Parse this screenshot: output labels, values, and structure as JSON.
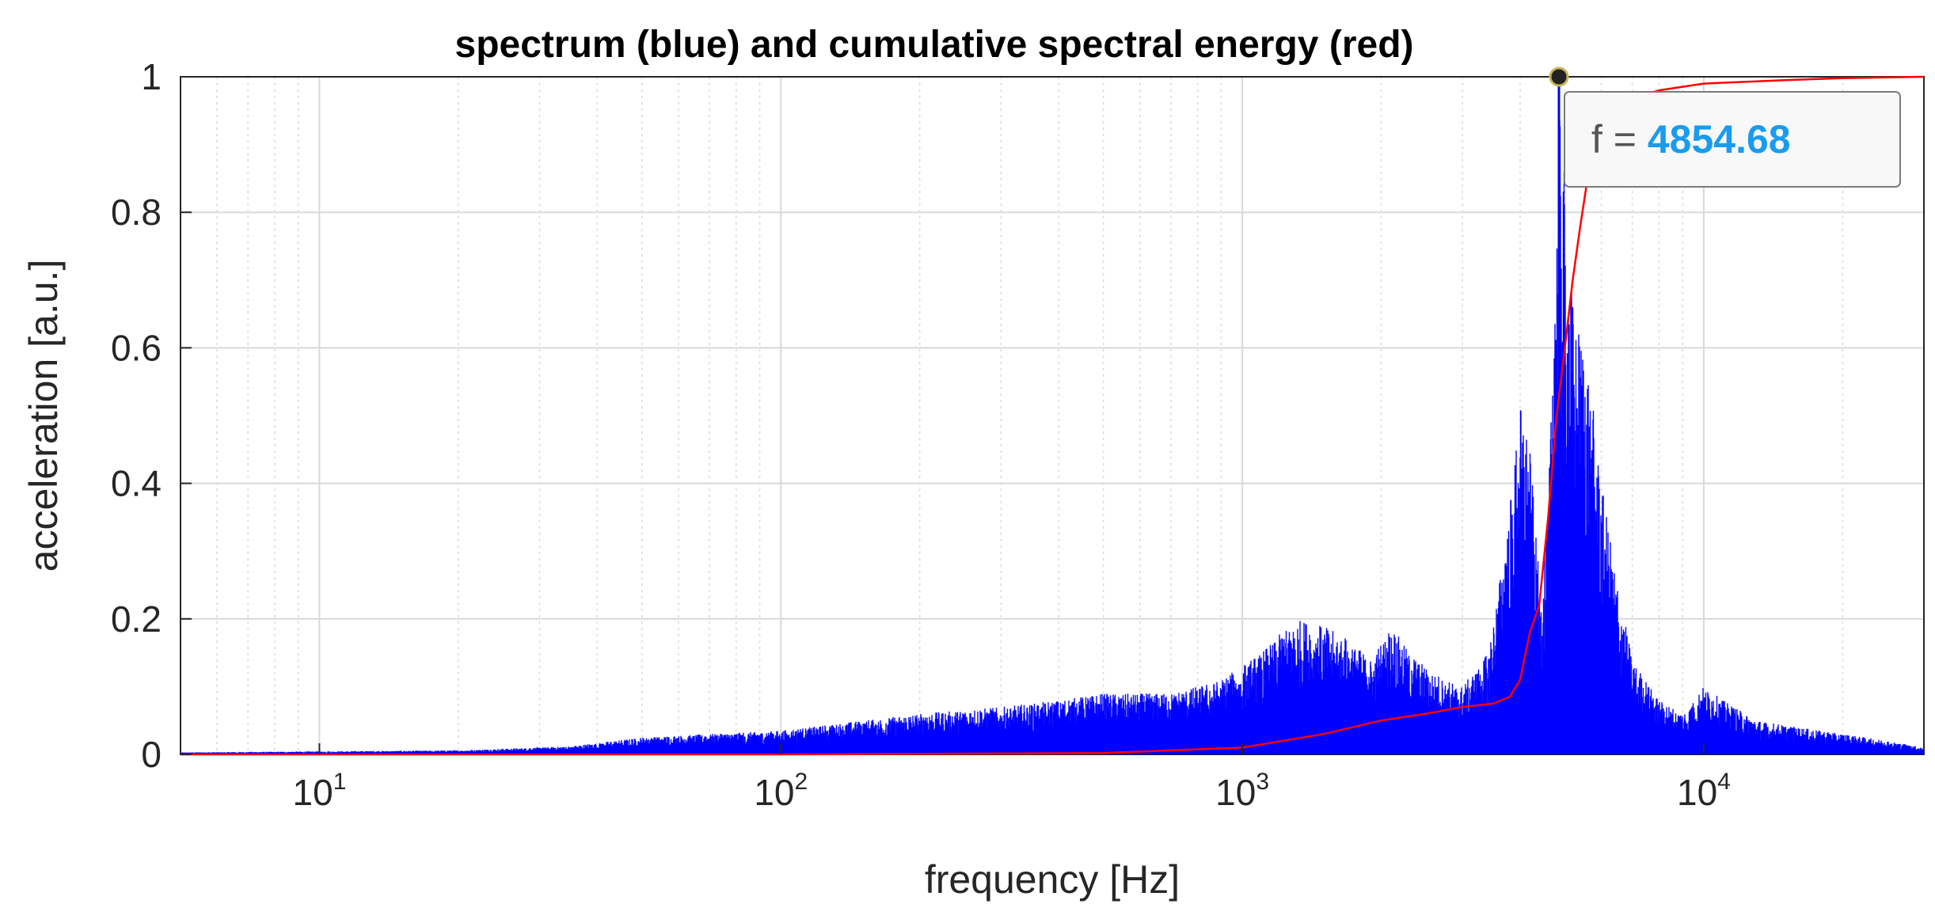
{
  "chart_data": {
    "type": "line",
    "title": "spectrum (blue) and cumulative spectral energy (red)",
    "xlabel": "frequency [Hz]",
    "ylabel": "acceleration [a.u.]",
    "xscale": "log",
    "xlim": [
      5,
      30000
    ],
    "ylim": [
      0,
      1
    ],
    "grid": true,
    "x_ticks": [
      {
        "base": "10",
        "exp": "1",
        "value": 10
      },
      {
        "base": "10",
        "exp": "2",
        "value": 100
      },
      {
        "base": "10",
        "exp": "3",
        "value": 1000
      },
      {
        "base": "10",
        "exp": "4",
        "value": 10000
      }
    ],
    "y_ticks": [
      {
        "label": "0",
        "value": 0
      },
      {
        "label": "0.2",
        "value": 0.2
      },
      {
        "label": "0.4",
        "value": 0.4
      },
      {
        "label": "0.6",
        "value": 0.6
      },
      {
        "label": "0.8",
        "value": 0.8
      },
      {
        "label": "1",
        "value": 1
      }
    ],
    "series": [
      {
        "color": "#0000ff",
        "x": [
          5,
          20,
          35,
          50,
          70,
          100,
          150,
          200,
          300,
          400,
          500,
          700,
          900,
          1100,
          1300,
          1500,
          1700,
          1900,
          2100,
          2300,
          2600,
          3000,
          3400,
          3700,
          4000,
          4200,
          4400,
          4600,
          4854.68,
          5100,
          5300,
          5600,
          6000,
          6500,
          7000,
          8000,
          9000,
          10000,
          11000,
          13000,
          16000,
          20000,
          25000,
          30000
        ],
        "y": [
          0.003,
          0.006,
          0.012,
          0.025,
          0.03,
          0.035,
          0.05,
          0.06,
          0.07,
          0.08,
          0.09,
          0.09,
          0.11,
          0.15,
          0.2,
          0.19,
          0.17,
          0.14,
          0.19,
          0.15,
          0.12,
          0.1,
          0.15,
          0.3,
          0.52,
          0.45,
          0.25,
          0.35,
          1.0,
          0.72,
          0.64,
          0.58,
          0.4,
          0.25,
          0.14,
          0.08,
          0.06,
          0.1,
          0.08,
          0.05,
          0.04,
          0.03,
          0.02,
          0.01
        ]
      },
      {
        "color": "#ff0000",
        "x": [
          5,
          100,
          500,
          1000,
          1500,
          2000,
          2500,
          3000,
          3500,
          3800,
          4000,
          4200,
          4400,
          4600,
          4800,
          5000,
          5200,
          5400,
          5600,
          5900,
          6200,
          6600,
          7200,
          8000,
          10000,
          15000,
          20000,
          30000
        ],
        "y": [
          0.0,
          0.0,
          0.002,
          0.01,
          0.03,
          0.05,
          0.06,
          0.07,
          0.075,
          0.085,
          0.11,
          0.18,
          0.22,
          0.35,
          0.5,
          0.6,
          0.7,
          0.78,
          0.85,
          0.9,
          0.93,
          0.95,
          0.97,
          0.98,
          0.99,
          0.995,
          0.998,
          1.0
        ]
      }
    ],
    "datatip": {
      "label": "f = ",
      "value": "4854.68",
      "x": 4854.68,
      "y": 1
    },
    "colors": {
      "axis": "#262626",
      "grid": "#d9d9d9",
      "tip_value": "#1a9bf0",
      "tip_bg": "#f8f8f8"
    }
  }
}
